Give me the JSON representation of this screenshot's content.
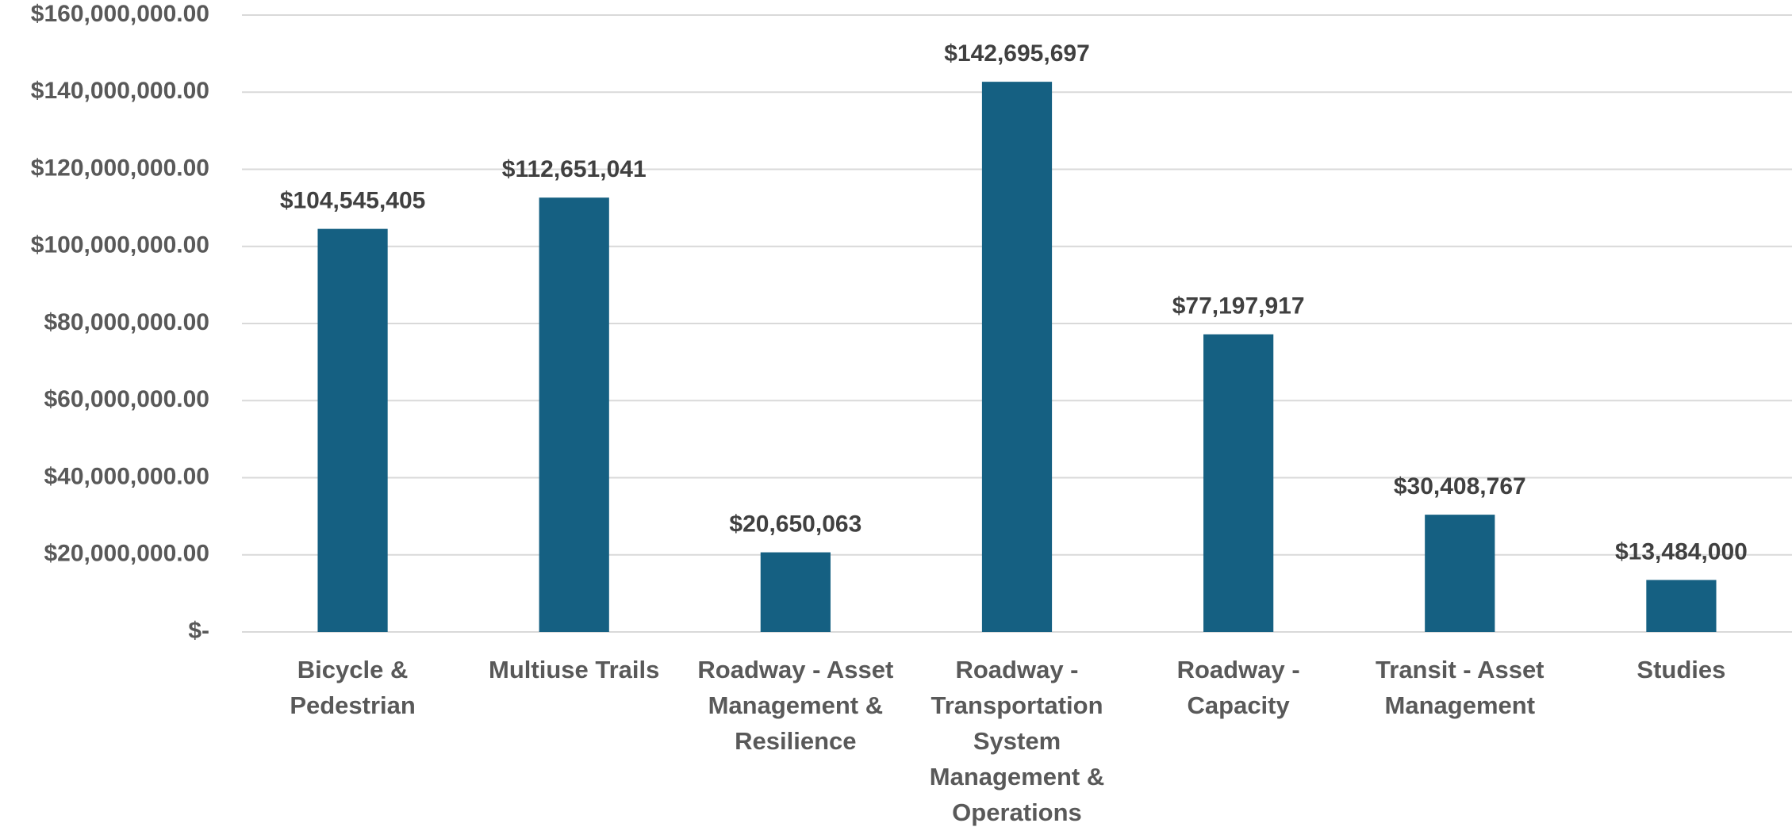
{
  "chart_data": {
    "type": "bar",
    "categories": [
      "Bicycle & Pedestrian",
      "Multiuse Trails",
      "Roadway - Asset Management & Resilience",
      "Roadway - Transportation System Management & Operations",
      "Roadway - Capacity",
      "Transit - Asset Management",
      "Studies"
    ],
    "values": [
      104545405,
      112651041,
      20650063,
      142695697,
      77197917,
      30408767,
      13484000
    ],
    "value_labels": [
      "$104,545,405",
      "$112,651,041",
      "$20,650,063",
      "$142,695,697",
      "$77,197,917",
      "$30,408,767",
      "$13,484,000"
    ],
    "color": "#156082",
    "ylim": [
      0,
      160000000
    ],
    "yticks": [
      {
        "value": 0,
        "label": "$-"
      },
      {
        "value": 20000000,
        "label": "$20,000,000.00"
      },
      {
        "value": 40000000,
        "label": "$40,000,000.00"
      },
      {
        "value": 60000000,
        "label": "$60,000,000.00"
      },
      {
        "value": 80000000,
        "label": "$80,000,000.00"
      },
      {
        "value": 100000000,
        "label": "$100,000,000.00"
      },
      {
        "value": 120000000,
        "label": "$120,000,000.00"
      },
      {
        "value": 140000000,
        "label": "$140,000,000.00"
      },
      {
        "value": 160000000,
        "label": "$160,000,000.00"
      }
    ],
    "grid": true
  }
}
